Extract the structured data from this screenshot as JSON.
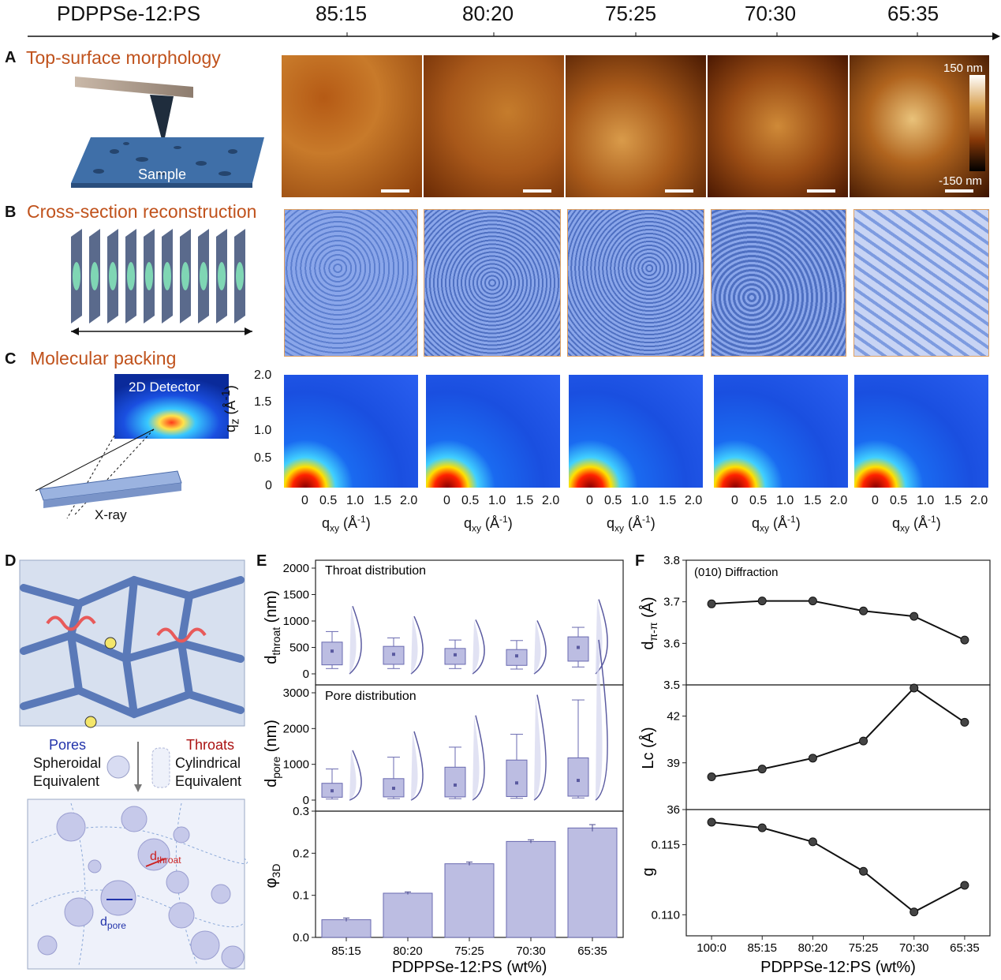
{
  "header": {
    "material": "PDPPSe-12:PS",
    "ratios": [
      "85:15",
      "80:20",
      "75:25",
      "70:30",
      "65:35"
    ]
  },
  "panelA": {
    "letter": "A",
    "title": "Top-surface morphology",
    "sample_label": "Sample",
    "colorbar_max": "150 nm",
    "colorbar_min": "-150 nm"
  },
  "panelB": {
    "letter": "B",
    "title": "Cross-section reconstruction"
  },
  "panelC": {
    "letter": "C",
    "title": "Molecular packing",
    "detector_label": "2D Detector",
    "xray_label": "X-ray",
    "qz_ticks": [
      "2.0",
      "1.5",
      "1.0",
      "0.5",
      "0"
    ],
    "qxy_ticks": [
      "0",
      "0.5",
      "1.0",
      "1.5",
      "2.0"
    ],
    "qz_label": "q",
    "qz_sub": "z",
    "qz_unit": "(Å",
    "qz_sup": "-1",
    "qz_close": ")",
    "qxy_label": "q",
    "qxy_sub": "xy",
    "qxy_unit": "(Å",
    "qxy_sup": "-1",
    "qxy_close": ")"
  },
  "panelD": {
    "letter": "D",
    "pores": "Pores",
    "throats": "Throats",
    "pores_desc1": "Spheroidal",
    "pores_desc2": "Equivalent",
    "throats_desc1": "Cylindrical",
    "throats_desc2": "Equivalent",
    "d_throat": "d",
    "d_throat_sub": "throat",
    "d_pore": "d",
    "d_pore_sub": "pore"
  },
  "panelE": {
    "letter": "E",
    "throat_title": "Throat distribution",
    "pore_title": "Pore distribution",
    "xlabel": "PDPPSe-12:PS (wt%)",
    "categories": [
      "85:15",
      "80:20",
      "75:25",
      "70:30",
      "65:35"
    ],
    "throat_yticks": [
      "2000",
      "1500",
      "1000",
      "500",
      "0"
    ],
    "pore_yticks": [
      "3000",
      "2000",
      "1000",
      "0"
    ],
    "phi_yticks": [
      "0.3",
      "0.2",
      "0.1",
      "0.0"
    ],
    "throat_ylabel": "d",
    "throat_ylabel_sub": "throat",
    "throat_ylabel_unit": "(nm)",
    "pore_ylabel": "d",
    "pore_ylabel_sub": "pore",
    "pore_ylabel_unit": "(nm)",
    "phi_ylabel": "φ",
    "phi_ylabel_sub": "3D"
  },
  "panelF": {
    "letter": "F",
    "annotation": "(010) Diffraction",
    "xlabel": "PDPPSe-12:PS (wt%)",
    "categories": [
      "100:0",
      "85:15",
      "80:20",
      "75:25",
      "70:30",
      "65:35"
    ],
    "d_yticks": [
      "3.8",
      "3.7",
      "3.6",
      "3.5"
    ],
    "lc_yticks": [
      "42",
      "39",
      "36"
    ],
    "g_yticks": [
      "0.115",
      "0.110"
    ],
    "d_ylabel": "d",
    "d_ylabel_sub": "π-π",
    "d_ylabel_unit": "(Å)",
    "lc_ylabel": "Lc (Å)",
    "g_ylabel": "g"
  },
  "chart_data": [
    {
      "type": "box",
      "title": "Throat distribution",
      "categories": [
        "85:15",
        "80:20",
        "75:25",
        "70:30",
        "65:35"
      ],
      "ylim": [
        0,
        2000
      ],
      "mean": [
        430,
        370,
        360,
        340,
        500
      ],
      "q1": [
        170,
        180,
        180,
        160,
        240
      ],
      "q3": [
        600,
        520,
        480,
        460,
        700
      ],
      "whisker_low": [
        100,
        100,
        100,
        90,
        130
      ],
      "whisker_high": [
        800,
        680,
        640,
        630,
        880
      ]
    },
    {
      "type": "box",
      "title": "Pore distribution",
      "categories": [
        "85:15",
        "80:20",
        "75:25",
        "70:30",
        "65:35"
      ],
      "ylim": [
        0,
        3000
      ],
      "mean": [
        260,
        330,
        420,
        480,
        550
      ],
      "q1": [
        80,
        90,
        90,
        100,
        110
      ],
      "q3": [
        470,
        600,
        920,
        1120,
        1180
      ],
      "whisker_low": [
        30,
        40,
        40,
        50,
        60
      ],
      "whisker_high": [
        870,
        1200,
        1480,
        1840,
        2800
      ]
    },
    {
      "type": "bar",
      "categories": [
        "85:15",
        "80:20",
        "75:25",
        "70:30",
        "65:35"
      ],
      "values": [
        0.042,
        0.105,
        0.175,
        0.228,
        0.26
      ],
      "errors": [
        0.004,
        0.003,
        0.004,
        0.004,
        0.008
      ],
      "ylim": [
        0,
        0.3
      ]
    },
    {
      "type": "line",
      "annotation": "(010) Diffraction",
      "categories": [
        "100:0",
        "85:15",
        "80:20",
        "75:25",
        "70:30",
        "65:35"
      ],
      "values": [
        3.695,
        3.702,
        3.702,
        3.678,
        3.665,
        3.608
      ],
      "ylim": [
        3.5,
        3.8
      ]
    },
    {
      "type": "line",
      "categories": [
        "100:0",
        "85:15",
        "80:20",
        "75:25",
        "70:30",
        "65:35"
      ],
      "values": [
        38.1,
        38.6,
        39.3,
        40.4,
        43.8,
        41.6
      ],
      "ylim": [
        36,
        44
      ]
    },
    {
      "type": "line",
      "categories": [
        "100:0",
        "85:15",
        "80:20",
        "75:25",
        "70:30",
        "65:35"
      ],
      "values": [
        0.1166,
        0.1162,
        0.1152,
        0.1131,
        0.1102,
        0.1121
      ],
      "ylim": [
        0.1085,
        0.1175
      ]
    }
  ]
}
